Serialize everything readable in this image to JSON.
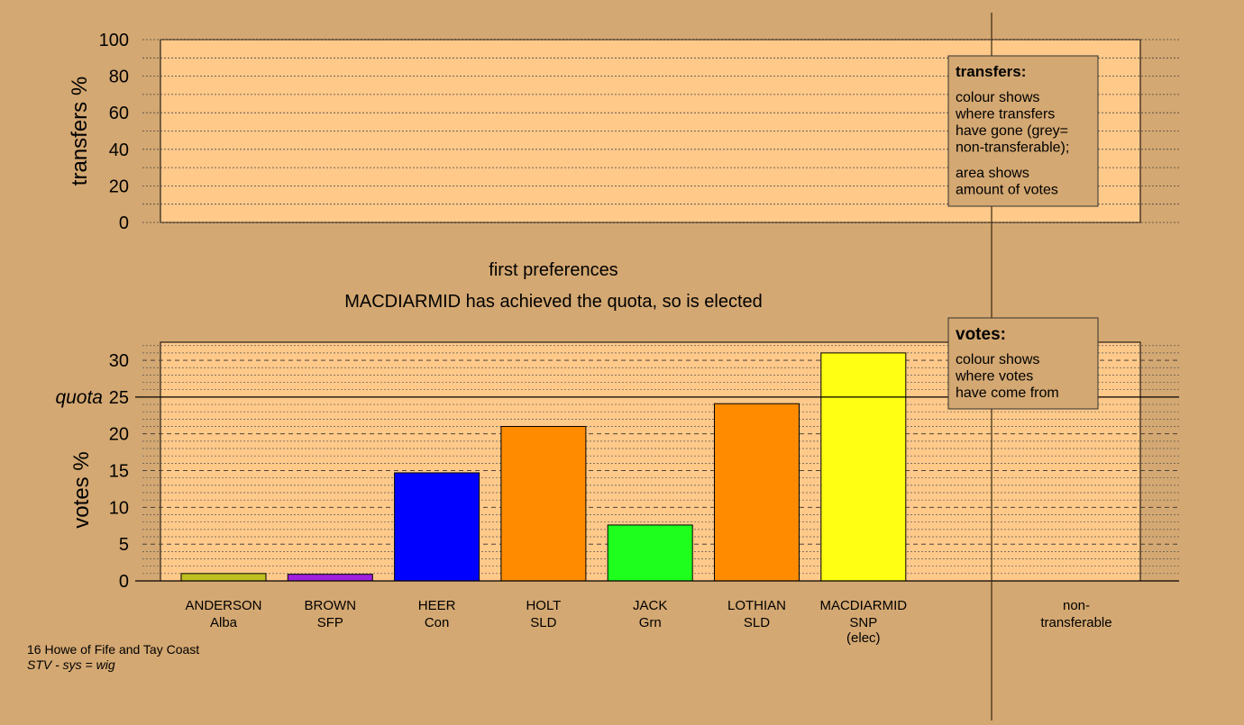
{
  "colors": {
    "background": "#D4A872",
    "panel": "#FFC98A",
    "legend_box": "#D4A872"
  },
  "transfers_panel": {
    "ylabel": "transfers %",
    "yticks": [
      0,
      20,
      40,
      60,
      80,
      100
    ],
    "ylim": [
      0,
      100
    ],
    "legend": {
      "title": "transfers:",
      "lines1": [
        "colour shows",
        "where transfers",
        "have gone (grey=",
        "non-transferable);"
      ],
      "lines2": [
        "area shows",
        "amount of votes"
      ]
    }
  },
  "stage_title": "first preferences",
  "status_message": "MACDIARMID has achieved the quota, so is elected",
  "chart_data": {
    "type": "bar",
    "ylabel": "votes %",
    "ylim": [
      0,
      32.5
    ],
    "yticks": [
      0,
      5,
      10,
      15,
      20,
      25,
      30
    ],
    "quota": {
      "label": "quota",
      "value": 25
    },
    "grid": true,
    "categories": [
      {
        "name": "ANDERSON",
        "party": "Alba",
        "note": "",
        "value": 1.0,
        "color": "#C0C020"
      },
      {
        "name": "BROWN",
        "party": "SFP",
        "note": "",
        "value": 0.9,
        "color": "#A020E0"
      },
      {
        "name": "HEER",
        "party": "Con",
        "note": "",
        "value": 14.7,
        "color": "#0000FF"
      },
      {
        "name": "HOLT",
        "party": "SLD",
        "note": "",
        "value": 21.0,
        "color": "#FF8C00"
      },
      {
        "name": "JACK",
        "party": "Grn",
        "note": "",
        "value": 7.6,
        "color": "#1EFF1E"
      },
      {
        "name": "LOTHIAN",
        "party": "SLD",
        "note": "",
        "value": 24.1,
        "color": "#FF8C00"
      },
      {
        "name": "MACDIARMID",
        "party": "SNP",
        "note": "(elec)",
        "value": 31.0,
        "color": "#FFFF14"
      }
    ],
    "nontransferable": {
      "line1": "non-",
      "line2": "transferable",
      "value": 0
    },
    "legend": {
      "title": "votes:",
      "lines": [
        "colour shows",
        "where votes",
        "have come from"
      ]
    }
  },
  "footer": {
    "constituency": "16 Howe of Fife and Tay Coast",
    "system": "STV - sys = wig"
  }
}
